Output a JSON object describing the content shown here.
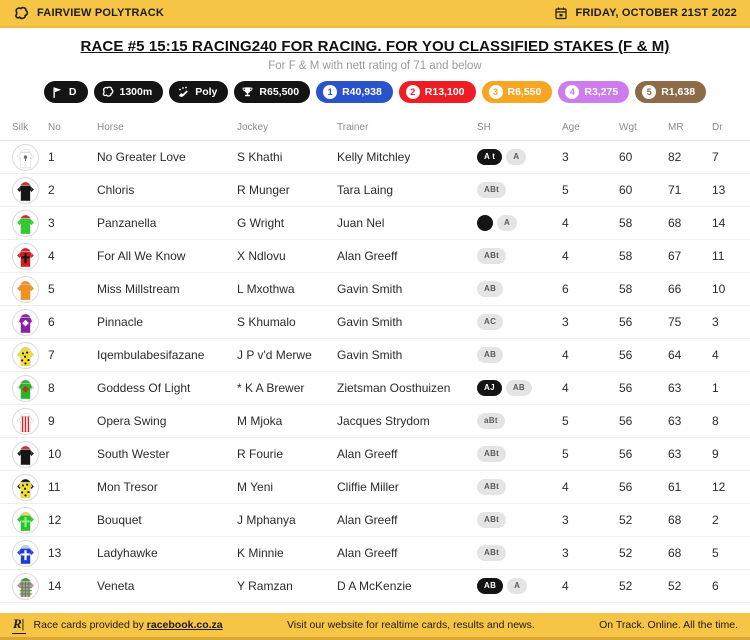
{
  "colors": {
    "brand_yellow": "#F6C545"
  },
  "topbar": {
    "track_name": "FAIRVIEW POLYTRACK",
    "date": "FRIDAY, OCTOBER 21ST 2022"
  },
  "race": {
    "title": "RACE #5 15:15 RACING240 FOR RACING. FOR YOU CLASSIFIED STAKES (F & M)",
    "subtitle": "For F & M with nett rating of 71 and below",
    "badges": [
      {
        "label": "D",
        "icon": "flag-icon",
        "bg": "#141414",
        "fg": "#ffffff"
      },
      {
        "label": "1300m",
        "icon": "track-icon",
        "bg": "#141414",
        "fg": "#ffffff"
      },
      {
        "label": "Poly",
        "icon": "surface-icon",
        "bg": "#141414",
        "fg": "#ffffff"
      },
      {
        "label": "R65,500",
        "icon": "trophy-icon",
        "bg": "#141414",
        "fg": "#ffffff"
      },
      {
        "label": "R40,938",
        "num": "1",
        "bg": "#2A53CB",
        "fg": "#ffffff"
      },
      {
        "label": "R13,100",
        "num": "2",
        "bg": "#EE1C24",
        "fg": "#ffffff"
      },
      {
        "label": "R6,550",
        "num": "3",
        "bg": "#F7A623",
        "fg": "#ffffff"
      },
      {
        "label": "R3,275",
        "num": "4",
        "bg": "#CE7BED",
        "fg": "#ffffff"
      },
      {
        "label": "R1,638",
        "num": "5",
        "bg": "#8E6B48",
        "fg": "#ffffff"
      }
    ]
  },
  "table": {
    "columns": [
      "Silk",
      "No",
      "Horse",
      "Jockey",
      "Trainer",
      "SH",
      "Age",
      "Wgt",
      "MR",
      "Dr"
    ],
    "runners": [
      {
        "no": "1",
        "horse": "No Greater Love",
        "jockey": "S Khathi",
        "trainer": "Kelly Mitchley",
        "sh": [
          {
            "text": "A t",
            "style": "black"
          },
          {
            "text": "A",
            "style": "gray"
          }
        ],
        "age": "3",
        "wgt": "60",
        "mr": "82",
        "dr": "7",
        "silk": {
          "cap": "#ffffff",
          "body": "#ffffff",
          "sleeves": "#ffffff",
          "pattern": "emblem",
          "pattern_color": "#6a6a6a"
        }
      },
      {
        "no": "2",
        "horse": "Chloris",
        "jockey": "R Munger",
        "trainer": "Tara Laing",
        "sh": [
          {
            "text": "ABt",
            "style": "gray"
          }
        ],
        "age": "5",
        "wgt": "60",
        "mr": "71",
        "dr": "13",
        "silk": {
          "cap": "#e02424",
          "body": "#151515",
          "sleeves": "#151515",
          "pattern": "none",
          "pattern_color": ""
        }
      },
      {
        "no": "3",
        "horse": "Panzanella",
        "jockey": "G Wright",
        "trainer": "Juan Nel",
        "sh": [
          {
            "text": "",
            "style": "dot"
          },
          {
            "text": "A",
            "style": "gray"
          }
        ],
        "age": "4",
        "wgt": "58",
        "mr": "68",
        "dr": "14",
        "silk": {
          "cap": "#e02424",
          "body": "#2ecc2e",
          "sleeves": "#2ecc2e",
          "pattern": "none",
          "pattern_color": ""
        }
      },
      {
        "no": "4",
        "horse": "For All We Know",
        "jockey": "X Ndlovu",
        "trainer": "Alan Greeff",
        "sh": [
          {
            "text": "ABt",
            "style": "gray"
          }
        ],
        "age": "4",
        "wgt": "58",
        "mr": "67",
        "dr": "11",
        "silk": {
          "cap": "#d41c1c",
          "body": "#d41c1c",
          "sleeves": "#d41c1c",
          "pattern": "cross",
          "pattern_color": "#141414"
        }
      },
      {
        "no": "5",
        "horse": "Miss Millstream",
        "jockey": "L Mxothwa",
        "trainer": "Gavin Smith",
        "sh": [
          {
            "text": "AB",
            "style": "gray"
          }
        ],
        "age": "6",
        "wgt": "58",
        "mr": "66",
        "dr": "10",
        "silk": {
          "cap": "#f2911f",
          "body": "#f2911f",
          "sleeves": "#f2911f",
          "pattern": "none",
          "pattern_color": ""
        }
      },
      {
        "no": "6",
        "horse": "Pinnacle",
        "jockey": "S Khumalo",
        "trainer": "Gavin Smith",
        "sh": [
          {
            "text": "AC",
            "style": "gray"
          }
        ],
        "age": "3",
        "wgt": "56",
        "mr": "75",
        "dr": "3",
        "silk": {
          "cap": "#8a1fa8",
          "body": "#8a1fa8",
          "sleeves": "#ffffff",
          "pattern": "diamond",
          "pattern_color": "#ffffff"
        }
      },
      {
        "no": "7",
        "horse": "Iqembulabesifazane",
        "jockey": "J P v'd Merwe",
        "trainer": "Gavin Smith",
        "sh": [
          {
            "text": "AB",
            "style": "gray"
          }
        ],
        "age": "4",
        "wgt": "56",
        "mr": "64",
        "dr": "4",
        "silk": {
          "cap": "#f2df2e",
          "body": "#f2df2e",
          "sleeves": "#f2df2e",
          "pattern": "spots",
          "pattern_color": "#141414"
        }
      },
      {
        "no": "8",
        "horse": "Goddess Of Light",
        "jockey": "* K A Brewer",
        "trainer": "Zietsman Oosthuizen",
        "sh": [
          {
            "text": "AJ",
            "style": "black"
          },
          {
            "text": "AB",
            "style": "gray"
          }
        ],
        "age": "4",
        "wgt": "56",
        "mr": "63",
        "dr": "1",
        "silk": {
          "cap": "#23b823",
          "body": "#23b823",
          "sleeves": "#dcdcdc",
          "pattern": "diamond",
          "pattern_color": "#e02424"
        }
      },
      {
        "no": "9",
        "horse": "Opera Swing",
        "jockey": "M Mjoka",
        "trainer": "Jacques Strydom",
        "sh": [
          {
            "text": "aBt",
            "style": "gray"
          }
        ],
        "age": "5",
        "wgt": "56",
        "mr": "63",
        "dr": "8",
        "silk": {
          "cap": "#ffffff",
          "body": "#ffffff",
          "sleeves": "#ffffff",
          "pattern": "stripes",
          "pattern_color": "#e02424"
        }
      },
      {
        "no": "10",
        "horse": "South Wester",
        "jockey": "R Fourie",
        "trainer": "Alan Greeff",
        "sh": [
          {
            "text": "ABt",
            "style": "gray"
          }
        ],
        "age": "5",
        "wgt": "56",
        "mr": "63",
        "dr": "9",
        "silk": {
          "cap": "#e02424",
          "body": "#151515",
          "sleeves": "#151515",
          "pattern": "none",
          "pattern_color": ""
        }
      },
      {
        "no": "11",
        "horse": "Mon Tresor",
        "jockey": "M Yeni",
        "trainer": "Cliffie Miller",
        "sh": [
          {
            "text": "ABt",
            "style": "gray"
          }
        ],
        "age": "4",
        "wgt": "56",
        "mr": "61",
        "dr": "12",
        "silk": {
          "cap": "#151515",
          "body": "#f2df2e",
          "sleeves": "#151515",
          "pattern": "spots",
          "pattern_color": "#141414"
        }
      },
      {
        "no": "12",
        "horse": "Bouquet",
        "jockey": "J Mphanya",
        "trainer": "Alan Greeff",
        "sh": [
          {
            "text": "ABt",
            "style": "gray"
          }
        ],
        "age": "3",
        "wgt": "52",
        "mr": "68",
        "dr": "2",
        "silk": {
          "cap": "#f2df2e",
          "body": "#23c823",
          "sleeves": "#23c823",
          "pattern": "cross",
          "pattern_color": "#8df08d"
        }
      },
      {
        "no": "13",
        "horse": "Ladyhawke",
        "jockey": "K Minnie",
        "trainer": "Alan Greeff",
        "sh": [
          {
            "text": "ABt",
            "style": "gray"
          }
        ],
        "age": "3",
        "wgt": "52",
        "mr": "68",
        "dr": "5",
        "silk": {
          "cap": "#a8d8f0",
          "body": "#2038d8",
          "sleeves": "#2038d8",
          "pattern": "cross",
          "pattern_color": "#ffffff"
        }
      },
      {
        "no": "14",
        "horse": "Veneta",
        "jockey": "Y Ramzan",
        "trainer": "D A McKenzie",
        "sh": [
          {
            "text": "AB",
            "style": "black"
          },
          {
            "text": "A",
            "style": "gray"
          }
        ],
        "age": "4",
        "wgt": "52",
        "mr": "52",
        "dr": "6",
        "silk": {
          "cap": "#23a823",
          "body": "#e574c3",
          "sleeves": "#e574c3",
          "pattern": "plaid",
          "pattern_color": "#23a823"
        }
      }
    ]
  },
  "footer": {
    "logo": "R|",
    "provided_prefix": "Race cards provided by",
    "link": "racebook.co.za",
    "center": "Visit our website for realtime cards, results and news.",
    "right": "On Track. Online. All the time."
  }
}
